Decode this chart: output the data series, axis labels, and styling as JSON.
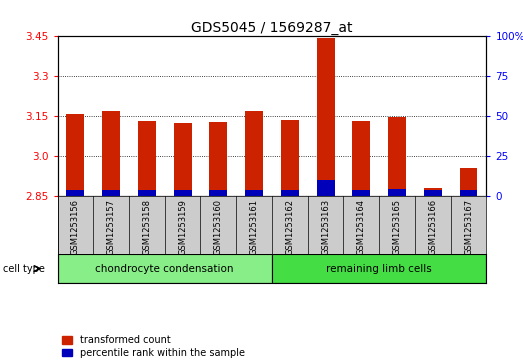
{
  "title": "GDS5045 / 1569287_at",
  "samples": [
    "GSM1253156",
    "GSM1253157",
    "GSM1253158",
    "GSM1253159",
    "GSM1253160",
    "GSM1253161",
    "GSM1253162",
    "GSM1253163",
    "GSM1253164",
    "GSM1253165",
    "GSM1253166",
    "GSM1253167"
  ],
  "transformed_count": [
    3.157,
    3.17,
    3.13,
    3.126,
    3.129,
    3.169,
    3.134,
    3.443,
    3.13,
    3.148,
    2.882,
    2.957
  ],
  "percentile_rank": [
    3.5,
    4.0,
    3.8,
    4.0,
    3.8,
    3.8,
    3.8,
    10.0,
    4.0,
    4.2,
    3.5,
    3.8
  ],
  "baseline": 2.85,
  "ylim_left": [
    2.85,
    3.45
  ],
  "yticks_left": [
    2.85,
    3.0,
    3.15,
    3.3,
    3.45
  ],
  "yticks_right": [
    0,
    25,
    50,
    75,
    100
  ],
  "ylim_right": [
    0,
    100
  ],
  "bar_color_red": "#CC2200",
  "bar_color_blue": "#0000BB",
  "bg_color_sample": "#CCCCCC",
  "group1_label": "chondrocyte condensation",
  "group2_label": "remaining limb cells",
  "group1_color": "#88EE88",
  "group2_color": "#44DD44",
  "group1_indices": [
    0,
    1,
    2,
    3,
    4,
    5
  ],
  "group2_indices": [
    6,
    7,
    8,
    9,
    10,
    11
  ],
  "cell_type_label": "cell type",
  "legend1": "transformed count",
  "legend2": "percentile rank within the sample",
  "title_fontsize": 10,
  "tick_fontsize": 7.5,
  "bar_width": 0.5
}
